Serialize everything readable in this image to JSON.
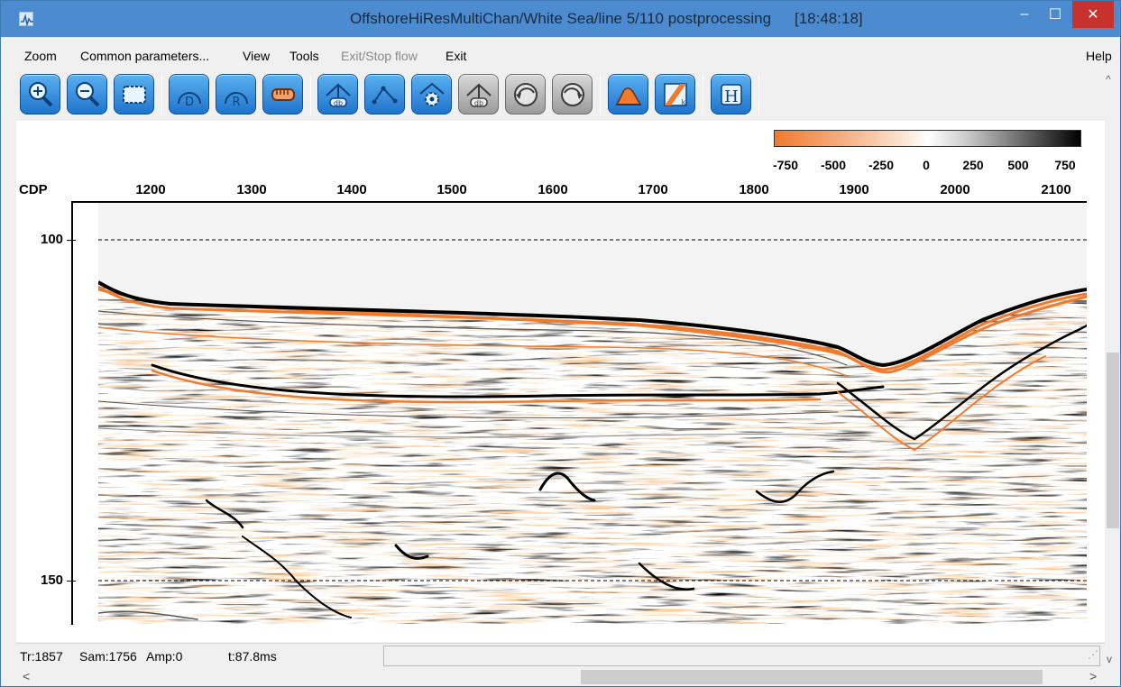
{
  "window": {
    "title": "OffshoreHiResMultiChan/White Sea/line 5/110 postprocessing",
    "time": "[18:48:18]",
    "min_glyph": "–",
    "max_glyph": "☐",
    "close_glyph": "✕"
  },
  "menu": {
    "zoom": "Zoom",
    "common_parameters": "Common parameters...",
    "view": "View",
    "tools": "Tools",
    "exit_stop_flow": "Exit/Stop flow",
    "exit": "Exit",
    "help": "Help"
  },
  "toolbar": {
    "buttons": [
      {
        "icon": "zoom-in-icon"
      },
      {
        "icon": "zoom-out-icon"
      },
      {
        "icon": "zoom-fit-icon"
      },
      {
        "icon": "d-icon",
        "letter": "D"
      },
      {
        "icon": "r-icon",
        "letter": "R"
      },
      {
        "icon": "ruler-icon"
      },
      {
        "icon": "db-pick-icon",
        "text": "db"
      },
      {
        "icon": "polyline-icon"
      },
      {
        "icon": "pick-settings-icon"
      },
      {
        "icon": "db-pick-gray-icon",
        "text": "db"
      },
      {
        "icon": "undo-gray-icon"
      },
      {
        "icon": "redo-gray-icon"
      },
      {
        "icon": "spectrum-icon"
      },
      {
        "icon": "fk-icon",
        "text": "k"
      },
      {
        "icon": "header-icon",
        "letter": "H"
      }
    ]
  },
  "plot": {
    "x_axis_label": "CDP",
    "x_ticks": [
      "1200",
      "1300",
      "1400",
      "1500",
      "1600",
      "1700",
      "1800",
      "1900",
      "2000",
      "2100"
    ],
    "y_ticks": [
      "100",
      "150"
    ],
    "colorbar_ticks": [
      "-750",
      "-500",
      "-250",
      "0",
      "250",
      "500",
      "750"
    ],
    "colorbar_colors": {
      "negative": "#f07a2e",
      "zero": "#ffffff",
      "positive": "#000000"
    }
  },
  "status": {
    "trace": "Tr:1857",
    "sample": "Sam:1756",
    "amplitude": "Amp:0",
    "time": "t:87.8ms"
  },
  "scroll": {
    "up": "^",
    "down": "v",
    "left": "<",
    "right": ">",
    "grip": "⋰"
  }
}
